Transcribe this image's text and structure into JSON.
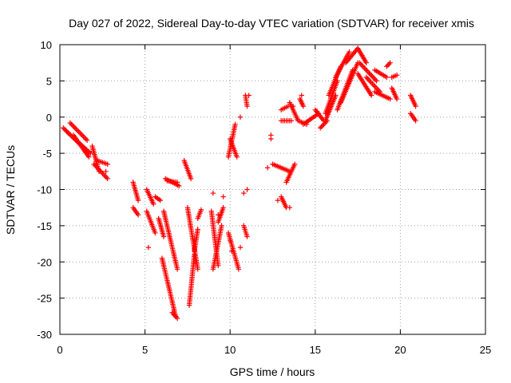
{
  "chart_data": {
    "type": "scatter",
    "title": "Day 027 of 2022, Sidereal Day-to-day VTEC variation (SDTVAR) for receiver xmis",
    "xlabel": "GPS time / hours",
    "ylabel": "SDTVAR / TECUs",
    "xlim": [
      0,
      25
    ],
    "ylim": [
      -30,
      10
    ],
    "xticks": [
      0,
      5,
      10,
      15,
      20,
      25
    ],
    "yticks": [
      10,
      5,
      0,
      -5,
      -10,
      -15,
      -20,
      -25,
      -30
    ],
    "grid": true,
    "marker": "plus",
    "color": "#ff0000",
    "segments": [
      {
        "x0": 0.2,
        "y0": -1.5,
        "x1": 1.5,
        "y1": -4.5
      },
      {
        "x0": 0.4,
        "y0": -2.0,
        "x1": 1.8,
        "y1": -5.0
      },
      {
        "x0": 0.6,
        "y0": -0.8,
        "x1": 1.6,
        "y1": -3.2
      },
      {
        "x0": 0.8,
        "y0": -2.5,
        "x1": 1.7,
        "y1": -5.5
      },
      {
        "x0": 1.9,
        "y0": -4.0,
        "x1": 2.3,
        "y1": -7.5
      },
      {
        "x0": 2.0,
        "y0": -6.5,
        "x1": 2.8,
        "y1": -8.5
      },
      {
        "x0": 2.2,
        "y0": -6.0,
        "x1": 2.8,
        "y1": -6.5
      },
      {
        "x0": 4.3,
        "y0": -9.0,
        "x1": 4.6,
        "y1": -11.5
      },
      {
        "x0": 4.3,
        "y0": -12.5,
        "x1": 4.6,
        "y1": -13.5
      },
      {
        "x0": 5.1,
        "y0": -10.0,
        "x1": 5.5,
        "y1": -12.0
      },
      {
        "x0": 5.1,
        "y0": -13.0,
        "x1": 5.6,
        "y1": -16.0
      },
      {
        "x0": 5.6,
        "y0": -11.0,
        "x1": 5.9,
        "y1": -11.5
      },
      {
        "x0": 5.8,
        "y0": -14.0,
        "x1": 6.1,
        "y1": -16.5
      },
      {
        "x0": 6.0,
        "y0": -19.5,
        "x1": 6.8,
        "y1": -27.5
      },
      {
        "x0": 6.1,
        "y0": -13.0,
        "x1": 6.9,
        "y1": -21.0
      },
      {
        "x0": 6.2,
        "y0": -8.5,
        "x1": 7.0,
        "y1": -9.5
      },
      {
        "x0": 6.3,
        "y0": -8.8,
        "x1": 6.9,
        "y1": -9.0
      },
      {
        "x0": 6.6,
        "y0": -27.0,
        "x1": 6.9,
        "y1": -27.8
      },
      {
        "x0": 7.3,
        "y0": -6.0,
        "x1": 7.7,
        "y1": -8.5
      },
      {
        "x0": 7.5,
        "y0": -12.5,
        "x1": 8.1,
        "y1": -21.0
      },
      {
        "x0": 7.6,
        "y0": -26.0,
        "x1": 7.9,
        "y1": -19.0
      },
      {
        "x0": 7.9,
        "y0": -18.5,
        "x1": 8.1,
        "y1": -15.5
      },
      {
        "x0": 8.1,
        "y0": -14.0,
        "x1": 8.3,
        "y1": -12.8
      },
      {
        "x0": 8.9,
        "y0": -13.0,
        "x1": 9.3,
        "y1": -20.5
      },
      {
        "x0": 9.0,
        "y0": -21.0,
        "x1": 9.5,
        "y1": -15.0
      },
      {
        "x0": 9.3,
        "y0": -14.5,
        "x1": 9.6,
        "y1": -12.5
      },
      {
        "x0": 9.9,
        "y0": -16.0,
        "x1": 10.5,
        "y1": -21.0
      },
      {
        "x0": 9.9,
        "y0": -5.5,
        "x1": 10.3,
        "y1": -1.0
      },
      {
        "x0": 10.0,
        "y0": -3.0,
        "x1": 10.4,
        "y1": -5.5
      },
      {
        "x0": 10.8,
        "y0": -15.0,
        "x1": 11.0,
        "y1": -16.5
      },
      {
        "x0": 10.9,
        "y0": 3.0,
        "x1": 11.0,
        "y1": 1.5
      },
      {
        "x0": 12.5,
        "y0": -6.5,
        "x1": 13.5,
        "y1": -7.5
      },
      {
        "x0": 13.0,
        "y0": -11.0,
        "x1": 13.3,
        "y1": -12.5
      },
      {
        "x0": 13.3,
        "y0": -9.0,
        "x1": 13.8,
        "y1": -6.5
      },
      {
        "x0": 13.0,
        "y0": 1.0,
        "x1": 13.4,
        "y1": 1.5
      },
      {
        "x0": 13.0,
        "y0": -0.5,
        "x1": 13.6,
        "y1": -0.5
      },
      {
        "x0": 13.5,
        "y0": 2.0,
        "x1": 14.0,
        "y1": -0.5
      },
      {
        "x0": 14.1,
        "y0": 2.5,
        "x1": 14.3,
        "y1": 1.5
      },
      {
        "x0": 14.0,
        "y0": -0.5,
        "x1": 14.5,
        "y1": -1.0
      },
      {
        "x0": 14.3,
        "y0": -1.0,
        "x1": 15.2,
        "y1": 0.5
      },
      {
        "x0": 15.0,
        "y0": 1.0,
        "x1": 15.5,
        "y1": -0.5
      },
      {
        "x0": 15.3,
        "y0": -1.5,
        "x1": 15.7,
        "y1": -0.5
      },
      {
        "x0": 15.6,
        "y0": -0.5,
        "x1": 16.2,
        "y1": 3.0
      },
      {
        "x0": 15.6,
        "y0": 0.5,
        "x1": 16.3,
        "y1": 5.0
      },
      {
        "x0": 15.8,
        "y0": 3.0,
        "x1": 16.5,
        "y1": 7.0
      },
      {
        "x0": 16.2,
        "y0": 5.5,
        "x1": 17.0,
        "y1": 9.0
      },
      {
        "x0": 16.3,
        "y0": 1.0,
        "x1": 17.2,
        "y1": 6.5
      },
      {
        "x0": 16.5,
        "y0": 2.0,
        "x1": 17.5,
        "y1": 7.5
      },
      {
        "x0": 16.8,
        "y0": 7.5,
        "x1": 17.5,
        "y1": 9.5
      },
      {
        "x0": 17.5,
        "y0": 9.5,
        "x1": 18.0,
        "y1": 7.5
      },
      {
        "x0": 17.6,
        "y0": 7.5,
        "x1": 18.6,
        "y1": 5.0
      },
      {
        "x0": 17.5,
        "y0": 6.0,
        "x1": 18.3,
        "y1": 3.0
      },
      {
        "x0": 18.0,
        "y0": 5.5,
        "x1": 18.8,
        "y1": 3.5
      },
      {
        "x0": 18.5,
        "y0": 3.5,
        "x1": 19.4,
        "y1": 2.5
      },
      {
        "x0": 18.5,
        "y0": 6.5,
        "x1": 19.2,
        "y1": 5.5
      },
      {
        "x0": 19.2,
        "y0": 7.0,
        "x1": 19.4,
        "y1": 7.5
      },
      {
        "x0": 19.5,
        "y0": 4.0,
        "x1": 19.8,
        "y1": 2.5
      },
      {
        "x0": 19.5,
        "y0": 5.5,
        "x1": 19.8,
        "y1": 5.8
      },
      {
        "x0": 20.6,
        "y0": 3.0,
        "x1": 20.9,
        "y1": 1.5
      },
      {
        "x0": 20.6,
        "y0": 0.5,
        "x1": 20.9,
        "y1": -0.5
      }
    ],
    "isolated_points": [
      [
        2.7,
        -7.5
      ],
      [
        5.2,
        -18.0
      ],
      [
        9.6,
        -11.0
      ],
      [
        10.0,
        -17.0
      ],
      [
        10.6,
        -18.0
      ],
      [
        10.8,
        -10.5
      ],
      [
        11.0,
        -10.0
      ],
      [
        11.1,
        3.0
      ],
      [
        12.2,
        -7.0
      ],
      [
        12.4,
        -3.0
      ],
      [
        12.4,
        -2.5
      ],
      [
        13.5,
        -12.5
      ],
      [
        13.7,
        1.5
      ],
      [
        14.2,
        3.0
      ],
      [
        9.0,
        -10.5
      ],
      [
        10.6,
        0.0
      ],
      [
        9.3,
        -13.5
      ],
      [
        10.1,
        -18.5
      ],
      [
        12.8,
        -11.5
      ],
      [
        15.1,
        0.8
      ]
    ]
  }
}
